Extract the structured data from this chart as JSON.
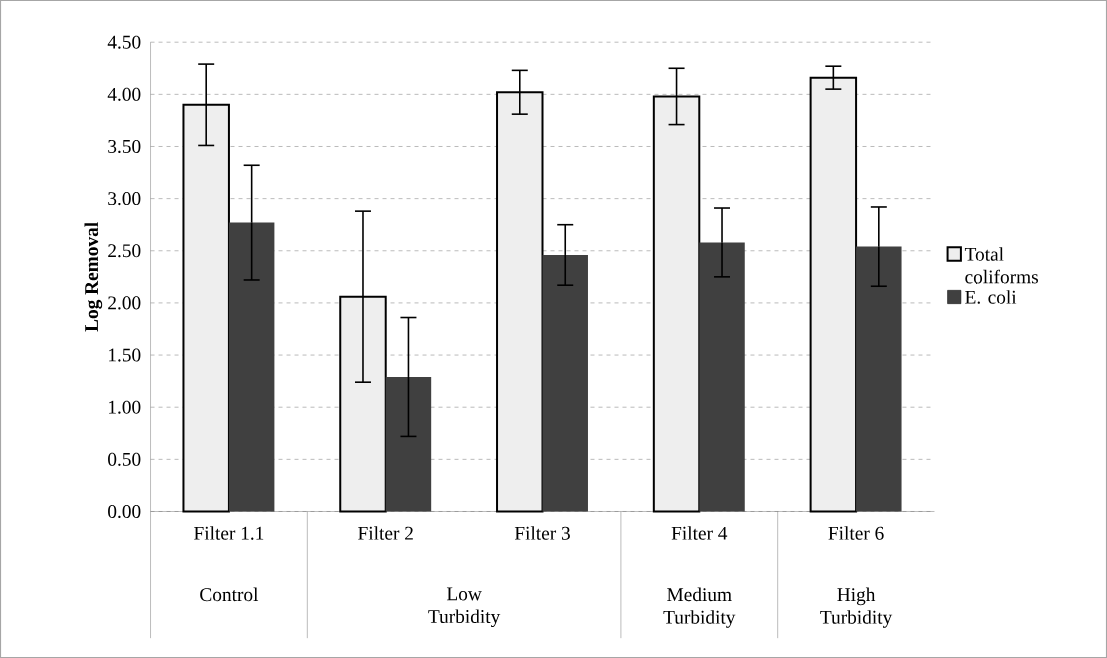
{
  "chart_data": {
    "type": "bar",
    "ylabel": "Log Removal",
    "categories": [
      "Filter 1.1",
      "Filter 2",
      "Filter 3",
      "Filter 4",
      "Filter 6"
    ],
    "annotations": [
      "Control",
      "Low Turbidity",
      "Medium Turbidity",
      "High Turbidity"
    ],
    "series": [
      {
        "name": "Total coliforms",
        "color": "#eeeeee",
        "values": [
          3.9,
          2.06,
          4.02,
          3.98,
          4.16
        ],
        "errors": [
          0.39,
          0.82,
          0.21,
          0.27,
          0.11
        ]
      },
      {
        "name": "E. coli",
        "color": "#404040",
        "values": [
          2.77,
          1.29,
          2.46,
          2.58,
          2.54
        ],
        "errors": [
          0.55,
          0.57,
          0.29,
          0.33,
          0.38
        ]
      }
    ],
    "ylim": [
      0,
      4.5
    ],
    "yticks": [
      {
        "value": 0,
        "label": "0.00"
      },
      {
        "value": 0.5,
        "label": "0.50"
      },
      {
        "value": 1,
        "label": "1.00"
      },
      {
        "value": 1.5,
        "label": "1.50"
      },
      {
        "value": 2,
        "label": "2.00"
      },
      {
        "value": 2.5,
        "label": "2.50"
      },
      {
        "value": 3,
        "label": "3.00"
      },
      {
        "value": 3.5,
        "label": "3.50"
      },
      {
        "value": 4,
        "label": "4.00"
      },
      {
        "value": 4.5,
        "label": "4.50"
      }
    ],
    "grid": "y",
    "legend": "right"
  }
}
